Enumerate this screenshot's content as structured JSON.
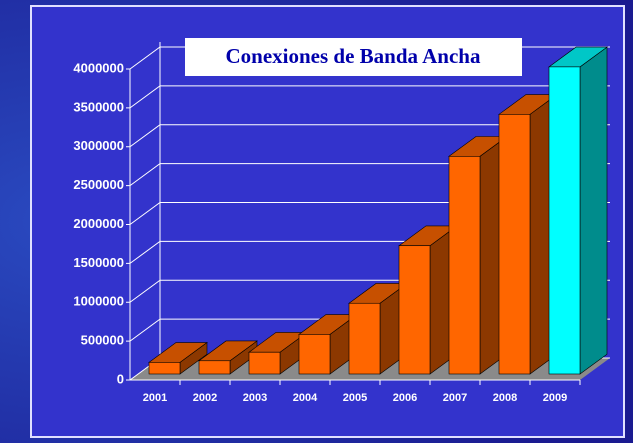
{
  "chart_data": {
    "type": "bar3d",
    "title": "Conexiones de Banda Ancha",
    "categories": [
      "2001",
      "2002",
      "2003",
      "2004",
      "2005",
      "2006",
      "2007",
      "2008",
      "2009"
    ],
    "values": [
      150000,
      170000,
      280000,
      510000,
      910000,
      1650000,
      2800000,
      3340000,
      3950000
    ],
    "colors": [
      "#ff6600",
      "#ff6600",
      "#ff6600",
      "#ff6600",
      "#ff6600",
      "#ff6600",
      "#ff6600",
      "#ff6600",
      "#00ffff"
    ],
    "ylim": [
      0,
      4000000
    ],
    "yticks": [
      0,
      500000,
      1000000,
      1500000,
      2000000,
      2500000,
      3000000,
      3500000,
      4000000
    ],
    "grid": true
  }
}
